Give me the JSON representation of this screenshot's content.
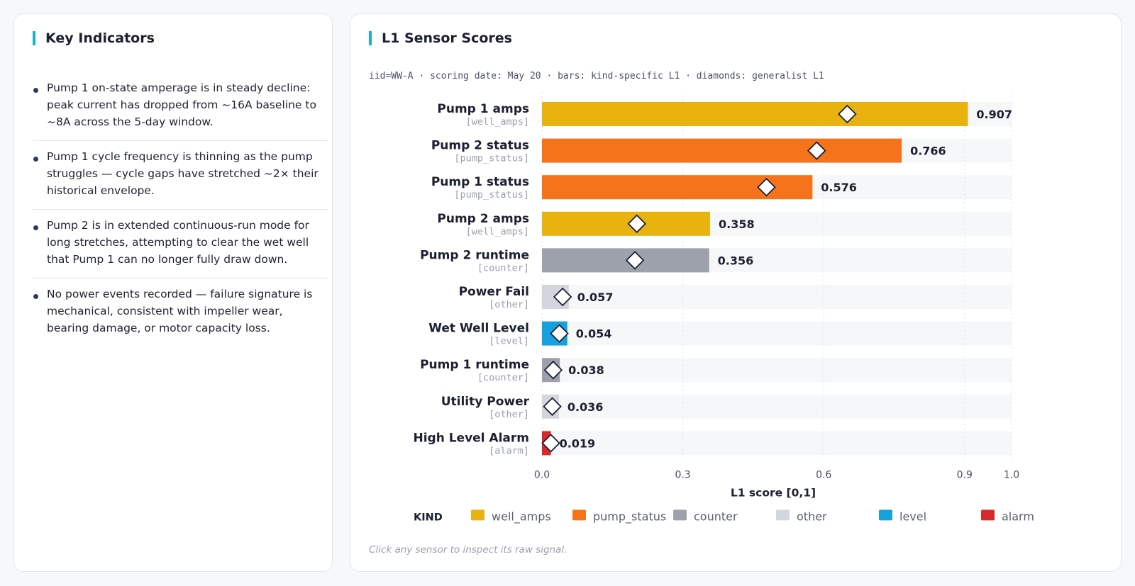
{
  "left_panel": {
    "title": "Key Indicators",
    "items": [
      {
        "text": "Pump 1 on-state amperage is in steady decline: peak current has dropped from ~16A baseline to ~8A across the 5-day window."
      },
      {
        "text": "Pump 1 cycle frequency is thinning as the pump struggles — cycle gaps have stretched ~2× their historical envelope."
      },
      {
        "text": "Pump 2 is in extended continuous-run mode for long stretches, attempting to clear the wet well that Pump 1 can no longer fully draw down."
      },
      {
        "text": "No power events recorded — failure signature is mechanical, consistent with impeller wear, bearing damage, or motor capacity loss."
      }
    ]
  },
  "right_panel": {
    "title": "L1 Sensor Scores",
    "subtitle": "iid=WW-A · scoring date: May 20 · bars: kind-specific L1 · diamonds: generalist L1",
    "footnote": "Click any sensor to inspect its raw signal."
  },
  "chart_data": {
    "type": "bar",
    "orientation": "horizontal",
    "xlabel": "L1 score [0,1]",
    "xlim": [
      0,
      1.0
    ],
    "xticks": [
      "0.0",
      "0.3",
      "0.6",
      "0.9",
      "1.0"
    ],
    "xtick_values": [
      0,
      0.3,
      0.6,
      0.9,
      1.0
    ],
    "grid": "vertical dotted",
    "legend_title": "KIND",
    "legend_position": "bottom",
    "kind_colors": {
      "well_amps": "#e8b30e",
      "pump_status": "#f5731b",
      "counter": "#9ca1ab",
      "other": "#d4d6de",
      "level": "#17a0de",
      "alarm": "#d62a2a"
    },
    "legend": [
      "well_amps",
      "pump_status",
      "counter",
      "other",
      "level",
      "alarm"
    ],
    "sensors": [
      {
        "name": "Pump 1 amps",
        "kind_label": "[well_amps]",
        "kind": "well_amps",
        "value": 0.907,
        "value_label": "0.907",
        "generalist": 0.65
      },
      {
        "name": "Pump 2 status",
        "kind_label": "[pump_status]",
        "kind": "pump_status",
        "value": 0.766,
        "value_label": "0.766",
        "generalist": 0.585
      },
      {
        "name": "Pump 1 status",
        "kind_label": "[pump_status]",
        "kind": "pump_status",
        "value": 0.576,
        "value_label": "0.576",
        "generalist": 0.478
      },
      {
        "name": "Pump 2 amps",
        "kind_label": "[well_amps]",
        "kind": "well_amps",
        "value": 0.358,
        "value_label": "0.358",
        "generalist": 0.202
      },
      {
        "name": "Pump 2 runtime",
        "kind_label": "[counter]",
        "kind": "counter",
        "value": 0.356,
        "value_label": "0.356",
        "generalist": 0.198
      },
      {
        "name": "Power Fail",
        "kind_label": "[other]",
        "kind": "other",
        "value": 0.057,
        "value_label": "0.057",
        "generalist": 0.044
      },
      {
        "name": "Wet Well Level",
        "kind_label": "[level]",
        "kind": "level",
        "value": 0.054,
        "value_label": "0.054",
        "generalist": 0.037
      },
      {
        "name": "Pump 1 runtime",
        "kind_label": "[counter]",
        "kind": "counter",
        "value": 0.038,
        "value_label": "0.038",
        "generalist": 0.024
      },
      {
        "name": "Utility Power",
        "kind_label": "[other]",
        "kind": "other",
        "value": 0.036,
        "value_label": "0.036",
        "generalist": 0.022
      },
      {
        "name": "High Level Alarm",
        "kind_label": "[alarm]",
        "kind": "alarm",
        "value": 0.019,
        "value_label": "0.019",
        "generalist": 0.019
      }
    ]
  }
}
